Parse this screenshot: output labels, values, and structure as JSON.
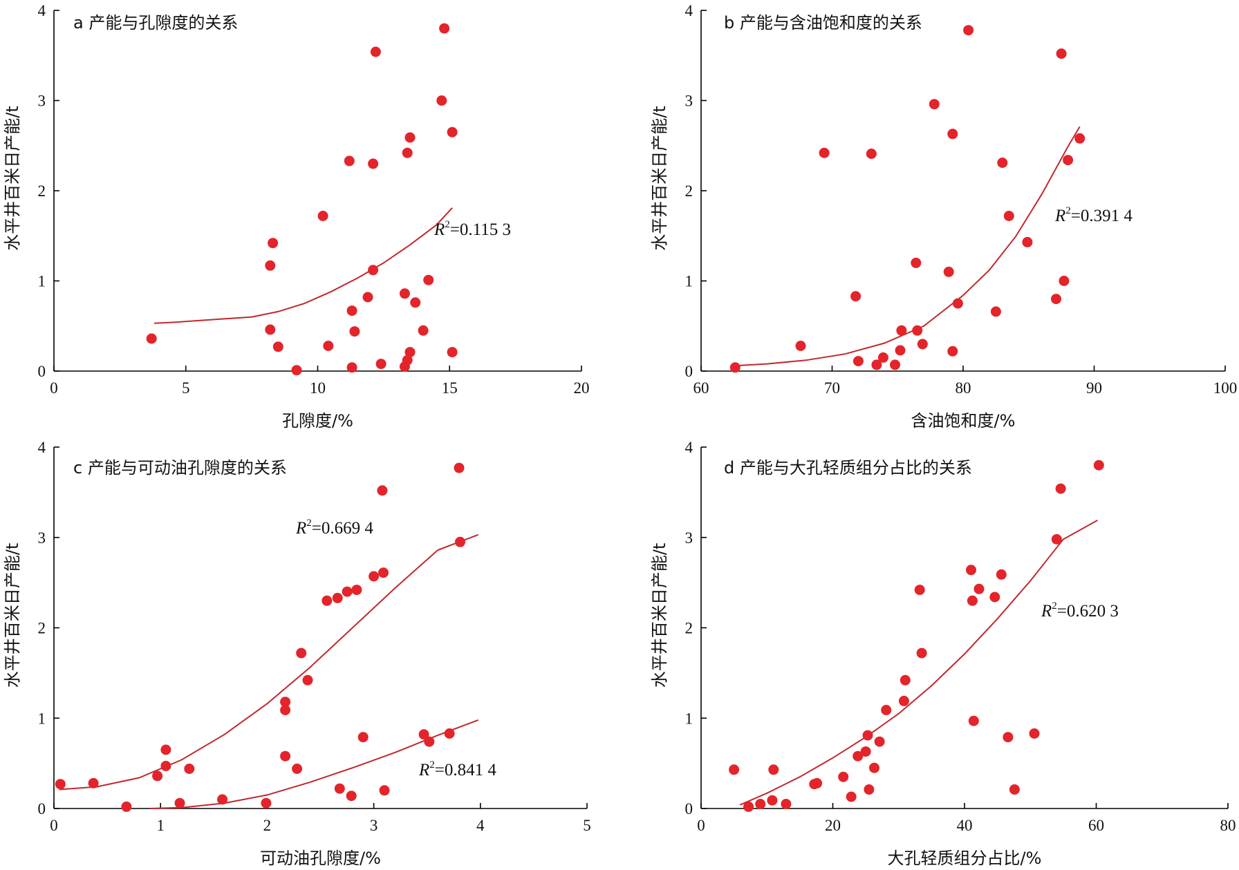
{
  "figure": {
    "accent_color": "#e3242b",
    "trend_color": "#c1272d"
  },
  "chart_data": [
    {
      "type": "scatter",
      "title": "a 产能与孔隙度的关系",
      "xlabel": "孔隙度/%",
      "ylabel": "水平井百米日产能/t",
      "xlim": [
        0,
        20
      ],
      "ylim": [
        0,
        4
      ],
      "xticks": [
        0,
        5,
        10,
        15,
        20
      ],
      "yticks": [
        0,
        1,
        2,
        3,
        4
      ],
      "points": [
        [
          3.7,
          0.36
        ],
        [
          8.2,
          1.17
        ],
        [
          8.3,
          1.42
        ],
        [
          8.2,
          0.46
        ],
        [
          8.5,
          0.27
        ],
        [
          9.2,
          0.01
        ],
        [
          10.2,
          1.72
        ],
        [
          10.4,
          0.28
        ],
        [
          11.2,
          2.33
        ],
        [
          11.3,
          0.67
        ],
        [
          11.3,
          0.04
        ],
        [
          11.4,
          0.44
        ],
        [
          11.9,
          0.82
        ],
        [
          12.1,
          2.3
        ],
        [
          12.1,
          1.12
        ],
        [
          12.2,
          3.54
        ],
        [
          12.4,
          0.08
        ],
        [
          13.3,
          0.86
        ],
        [
          13.3,
          0.05
        ],
        [
          13.4,
          0.12
        ],
        [
          13.4,
          2.42
        ],
        [
          13.5,
          2.59
        ],
        [
          13.5,
          0.21
        ],
        [
          13.7,
          0.76
        ],
        [
          14.0,
          0.45
        ],
        [
          14.2,
          1.01
        ],
        [
          14.7,
          3.0
        ],
        [
          14.8,
          3.8
        ],
        [
          15.1,
          2.65
        ],
        [
          15.1,
          0.21
        ]
      ],
      "trendlines": [
        {
          "label": "R",
          "sup": "2",
          "value": "=0.115 3",
          "x": [
            3.8,
            4.5,
            5.5,
            6.5,
            7.5,
            8.5,
            9.5,
            10.5,
            11.5,
            12.5,
            13.5,
            14.5,
            15.1
          ],
          "y": [
            0.53,
            0.54,
            0.56,
            0.58,
            0.6,
            0.66,
            0.75,
            0.88,
            1.03,
            1.2,
            1.4,
            1.62,
            1.81
          ]
        }
      ]
    },
    {
      "type": "scatter",
      "title": "b 产能与含油饱和度的关系",
      "xlabel": "含油饱和度/%",
      "ylabel": "水平井百米日产能/t",
      "xlim": [
        60,
        100
      ],
      "ylim": [
        0,
        4
      ],
      "xticks": [
        60,
        70,
        80,
        90,
        100
      ],
      "yticks": [
        0,
        1,
        2,
        3,
        4
      ],
      "points": [
        [
          62.6,
          0.04
        ],
        [
          67.6,
          0.28
        ],
        [
          69.4,
          2.42
        ],
        [
          71.8,
          0.83
        ],
        [
          72.0,
          0.11
        ],
        [
          73.0,
          2.41
        ],
        [
          73.4,
          0.07
        ],
        [
          73.9,
          0.15
        ],
        [
          74.8,
          0.07
        ],
        [
          75.2,
          0.23
        ],
        [
          75.3,
          0.45
        ],
        [
          76.4,
          1.2
        ],
        [
          76.5,
          0.45
        ],
        [
          76.9,
          0.3
        ],
        [
          77.8,
          2.96
        ],
        [
          78.9,
          1.1
        ],
        [
          79.2,
          2.63
        ],
        [
          79.2,
          0.22
        ],
        [
          79.6,
          0.75
        ],
        [
          80.4,
          3.78
        ],
        [
          82.5,
          0.66
        ],
        [
          83.0,
          2.31
        ],
        [
          83.5,
          1.72
        ],
        [
          84.9,
          1.43
        ],
        [
          87.1,
          0.8
        ],
        [
          87.5,
          3.52
        ],
        [
          87.7,
          1.0
        ],
        [
          88.0,
          2.34
        ],
        [
          88.9,
          2.58
        ]
      ],
      "trendlines": [
        {
          "label": "R",
          "sup": "2",
          "value": "=0.391 4",
          "x": [
            62.6,
            65,
            68,
            71,
            74,
            77,
            80,
            82,
            84,
            86,
            88,
            88.9
          ],
          "y": [
            0.06,
            0.08,
            0.12,
            0.19,
            0.31,
            0.5,
            0.84,
            1.12,
            1.49,
            1.96,
            2.49,
            2.71
          ]
        }
      ]
    },
    {
      "type": "scatter",
      "title": "c 产能与可动油孔隙度的关系",
      "xlabel": "可动油孔隙度/%",
      "ylabel": "水平井百米日产能/t",
      "xlim": [
        0,
        5
      ],
      "ylim": [
        0,
        4
      ],
      "xticks": [
        0,
        1,
        2,
        3,
        4,
        5
      ],
      "yticks": [
        0,
        1,
        2,
        3,
        4
      ],
      "points": [
        [
          0.06,
          0.27
        ],
        [
          0.37,
          0.28
        ],
        [
          0.68,
          0.02
        ],
        [
          0.97,
          0.36
        ],
        [
          1.05,
          0.65
        ],
        [
          1.05,
          0.47
        ],
        [
          1.18,
          0.06
        ],
        [
          1.27,
          0.44
        ],
        [
          1.58,
          0.1
        ],
        [
          1.99,
          0.06
        ],
        [
          2.17,
          1.18
        ],
        [
          2.17,
          1.09
        ],
        [
          2.17,
          0.58
        ],
        [
          2.28,
          0.44
        ],
        [
          2.32,
          1.72
        ],
        [
          2.38,
          1.42
        ],
        [
          2.56,
          2.3
        ],
        [
          2.66,
          2.33
        ],
        [
          2.75,
          2.4
        ],
        [
          2.84,
          2.42
        ],
        [
          2.68,
          0.22
        ],
        [
          2.79,
          0.14
        ],
        [
          2.9,
          0.79
        ],
        [
          3.0,
          2.57
        ],
        [
          3.08,
          3.52
        ],
        [
          3.09,
          2.61
        ],
        [
          3.1,
          0.2
        ],
        [
          3.47,
          0.82
        ],
        [
          3.52,
          0.74
        ],
        [
          3.71,
          0.83
        ],
        [
          3.8,
          3.77
        ],
        [
          3.81,
          2.95
        ]
      ],
      "trendlines": [
        {
          "label": "R",
          "sup": "2",
          "value": "=0.669 4",
          "x": [
            0.05,
            0.4,
            0.8,
            1.2,
            1.6,
            2.0,
            2.4,
            2.8,
            3.2,
            3.6,
            3.98
          ],
          "y": [
            0.21,
            0.24,
            0.34,
            0.54,
            0.82,
            1.16,
            1.56,
            2.0,
            2.44,
            2.86,
            3.03
          ]
        },
        {
          "label": "R",
          "sup": "2",
          "value": "=0.841 4",
          "x": [
            0.9,
            1.2,
            1.6,
            2.0,
            2.4,
            2.8,
            3.2,
            3.6,
            3.98
          ],
          "y": [
            0.0,
            0.01,
            0.06,
            0.15,
            0.29,
            0.45,
            0.62,
            0.81,
            0.98
          ]
        }
      ]
    },
    {
      "type": "scatter",
      "title": "d 产能与大孔轻质组分占比的关系",
      "xlabel": "大孔轻质组分占比/%",
      "ylabel": "水平井百米日产能/t",
      "xlim": [
        0,
        80
      ],
      "ylim": [
        0,
        4
      ],
      "xticks": [
        0,
        20,
        40,
        60,
        80
      ],
      "yticks": [
        0,
        1,
        2,
        3,
        4
      ],
      "points": [
        [
          5.0,
          0.43
        ],
        [
          7.2,
          0.02
        ],
        [
          9.0,
          0.05
        ],
        [
          10.8,
          0.09
        ],
        [
          11.0,
          0.43
        ],
        [
          12.9,
          0.05
        ],
        [
          17.2,
          0.27
        ],
        [
          17.6,
          0.28
        ],
        [
          21.6,
          0.35
        ],
        [
          22.8,
          0.13
        ],
        [
          23.8,
          0.58
        ],
        [
          25.0,
          0.63
        ],
        [
          25.3,
          0.81
        ],
        [
          25.5,
          0.21
        ],
        [
          26.3,
          0.45
        ],
        [
          27.1,
          0.74
        ],
        [
          28.1,
          1.09
        ],
        [
          30.8,
          1.19
        ],
        [
          31.0,
          1.42
        ],
        [
          33.2,
          2.42
        ],
        [
          33.5,
          1.72
        ],
        [
          41.0,
          2.64
        ],
        [
          41.2,
          2.3
        ],
        [
          41.4,
          0.97
        ],
        [
          42.2,
          2.43
        ],
        [
          44.6,
          2.34
        ],
        [
          45.6,
          2.59
        ],
        [
          46.6,
          0.79
        ],
        [
          47.6,
          0.21
        ],
        [
          50.6,
          0.83
        ],
        [
          54.0,
          2.98
        ],
        [
          54.6,
          3.54
        ],
        [
          60.4,
          3.8
        ]
      ],
      "trendlines": [
        {
          "label": "R",
          "sup": "2",
          "value": "=0.620 3",
          "x": [
            5.9,
            10,
            15,
            20,
            25,
            30,
            35,
            40,
            45,
            50,
            55,
            60.2
          ],
          "y": [
            0.04,
            0.17,
            0.35,
            0.56,
            0.79,
            1.05,
            1.36,
            1.71,
            2.1,
            2.52,
            2.98,
            3.19
          ]
        }
      ]
    }
  ]
}
